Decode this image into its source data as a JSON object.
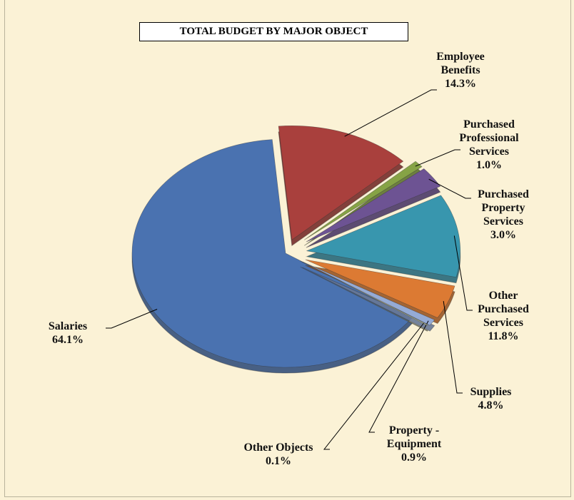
{
  "chart_data": {
    "type": "pie",
    "title": "TOTAL BUDGET BY MAJOR OBJECT",
    "categories": [
      "Salaries",
      "Employee Benefits",
      "Purchased Professional Services",
      "Purchased Property Services",
      "Other Purchased Services",
      "Supplies",
      "Property - Equipment",
      "Other Objects"
    ],
    "values": [
      64.1,
      14.3,
      1.0,
      3.0,
      11.8,
      4.8,
      0.9,
      0.1
    ],
    "value_labels": [
      "64.1%",
      "14.3%",
      "1.0%",
      "3.0%",
      "11.8%",
      "4.8%",
      "0.9%",
      "0.1%"
    ],
    "colors": [
      "#4a72b0",
      "#a9403d",
      "#86a345",
      "#6d5393",
      "#3896ae",
      "#dc7a33",
      "#95abd6",
      "#c6cc9a"
    ]
  }
}
